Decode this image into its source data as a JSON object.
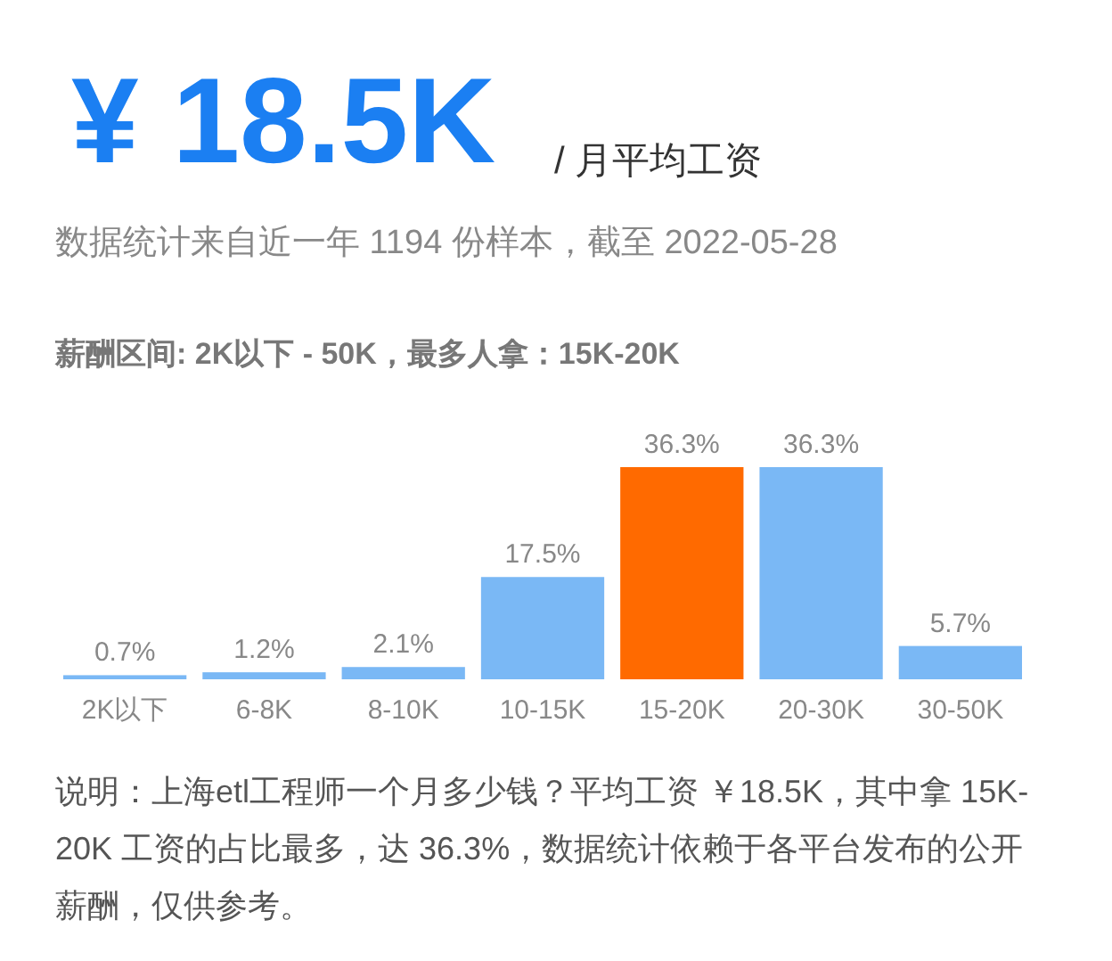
{
  "chart_data": {
    "type": "bar",
    "title": "¥ 18.5K",
    "subtitle": "/ 月平均工资",
    "annotations": [
      "数据统计来自近一年 1194 份样本，截至 2022-05-28",
      "薪酬区间: 2K以下 - 50K，最多人拿：15K-20K",
      "说明：上海etl工程师一个月多少钱？平均工资 ￥18.5K，其中拿 15K-20K 工资的占比最多，达 36.3%，数据统计依赖于各平台发布的公开薪酬，仅供参考。"
    ],
    "categories": [
      "2K以下",
      "6-8K",
      "8-10K",
      "10-15K",
      "15-20K",
      "20-30K",
      "30-50K"
    ],
    "values": [
      0.7,
      1.2,
      2.1,
      17.5,
      36.3,
      36.3,
      5.7
    ],
    "value_labels": [
      "0.7%",
      "1.2%",
      "2.1%",
      "17.5%",
      "36.3%",
      "36.3%",
      "5.7%"
    ],
    "colors": [
      "#7ab8f5",
      "#7ab8f5",
      "#7ab8f5",
      "#7ab8f5",
      "#ff6a00",
      "#7ab8f5",
      "#7ab8f5"
    ]
  }
}
